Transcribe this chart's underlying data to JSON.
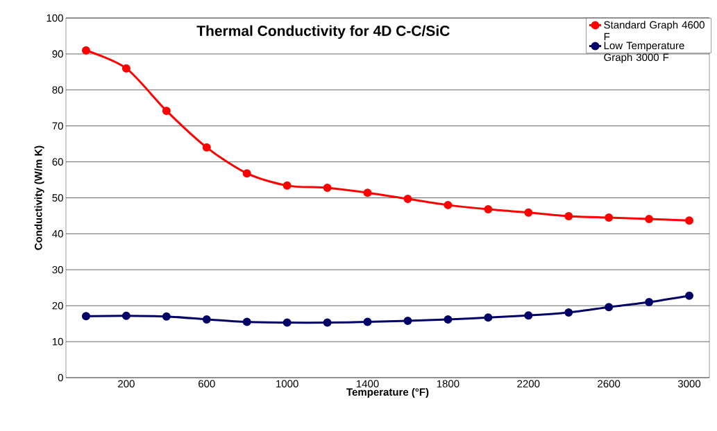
{
  "chart_data": {
    "type": "line",
    "title": "Thermal Conductivity for 4D C-C/SiC",
    "xlabel": "Temperature  (°F)",
    "ylabel": "Conductivity  (W/m K)",
    "categories": [
      null,
      "200",
      null,
      "600",
      null,
      "1000",
      null,
      "1400",
      null,
      "1800",
      null,
      "2200",
      null,
      "2600",
      null,
      "3000"
    ],
    "series": [
      {
        "name": "Standard Graph 4600 F",
        "color": "#ff0000",
        "values": [
          91,
          86,
          74.2,
          64,
          56.8,
          53.4,
          52.8,
          51.4,
          49.7,
          48,
          46.8,
          45.9,
          44.9,
          44.5,
          44.1,
          43.7
        ]
      },
      {
        "name": "Low Temperature Graph 3000 F",
        "color": "#000066",
        "values": [
          17.1,
          17.2,
          17,
          16.2,
          15.5,
          15.3,
          15.3,
          15.5,
          15.8,
          16.2,
          16.7,
          17.3,
          18.1,
          19.6,
          21,
          22.8
        ]
      }
    ],
    "ylim": [
      0,
      100
    ],
    "yticks": [
      0,
      10,
      20,
      30,
      40,
      50,
      60,
      70,
      80,
      90,
      100
    ],
    "grid": "y",
    "legend": "top right",
    "marker": "circle",
    "line_style": "solid"
  }
}
